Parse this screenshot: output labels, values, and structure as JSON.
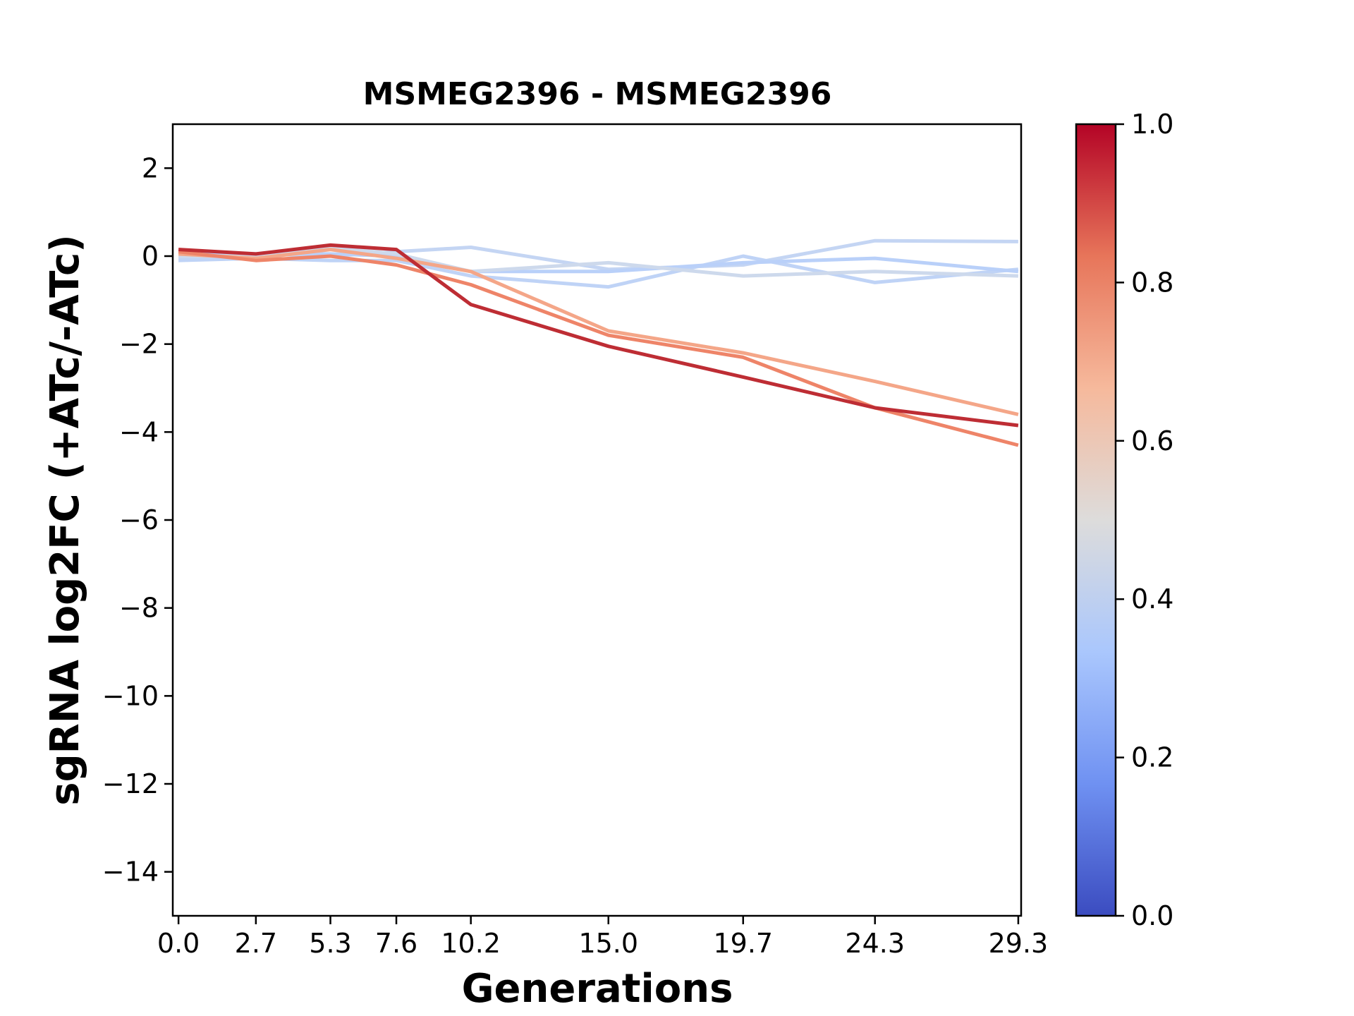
{
  "chart_data": {
    "type": "line",
    "title": "MSMEG2396 - MSMEG2396",
    "xlabel": "Generations",
    "ylabel": "sgRNA log2FC (+ATc/-ATc)",
    "x": [
      0.0,
      2.7,
      5.3,
      7.6,
      10.2,
      15.0,
      19.7,
      24.3,
      29.3
    ],
    "x_tick_labels": [
      "0.0",
      "2.7",
      "5.3",
      "7.6",
      "10.2",
      "15.0",
      "19.7",
      "24.3",
      "29.3"
    ],
    "xlim": [
      -0.2,
      29.4
    ],
    "ylim": [
      -15,
      3
    ],
    "y_ticks": [
      2,
      0,
      -2,
      -4,
      -6,
      -8,
      -10,
      -12,
      -14
    ],
    "y_tick_labels": [
      "2",
      "0",
      "−2",
      "−4",
      "−6",
      "−8",
      "−10",
      "−12",
      "−14"
    ],
    "grid": false,
    "legend": "none",
    "colorbar": {
      "colormap": "coolwarm",
      "range": [
        0.0,
        1.0
      ],
      "ticks": [
        0.0,
        0.2,
        0.4,
        0.6,
        0.8,
        1.0
      ],
      "tick_labels": [
        "0.0",
        "0.2",
        "0.4",
        "0.6",
        "0.8",
        "1.0"
      ],
      "stops": [
        "#3b4cc0",
        "#6f91f2",
        "#aac7fd",
        "#dddcdb",
        "#f6b99c",
        "#e7755a",
        "#b40426"
      ]
    },
    "series": [
      {
        "color_value": 0.4,
        "color": "#c4d5f3",
        "values": [
          -0.05,
          0.05,
          0.0,
          0.1,
          0.2,
          -0.3,
          -0.2,
          0.35,
          0.33
        ]
      },
      {
        "color_value": 0.38,
        "color": "#bfd3f6",
        "values": [
          -0.1,
          -0.05,
          -0.1,
          -0.1,
          -0.45,
          -0.7,
          0.0,
          -0.6,
          -0.3
        ]
      },
      {
        "color_value": 0.36,
        "color": "#b9d0f9",
        "values": [
          0.1,
          0.05,
          0.05,
          0.0,
          -0.35,
          -0.35,
          -0.15,
          -0.05,
          -0.35
        ]
      },
      {
        "color_value": 0.44,
        "color": "#cdd9ec",
        "values": [
          0.0,
          0.0,
          0.2,
          0.05,
          -0.35,
          -0.15,
          -0.45,
          -0.35,
          -0.45
        ]
      },
      {
        "color_value": 0.72,
        "color": "#f4a688",
        "values": [
          0.05,
          -0.05,
          0.15,
          -0.05,
          -0.35,
          -1.7,
          -2.2,
          -2.85,
          -3.6
        ]
      },
      {
        "color_value": 0.8,
        "color": "#ee8468",
        "values": [
          0.1,
          -0.1,
          0.0,
          -0.2,
          -0.65,
          -1.8,
          -2.3,
          -3.45,
          -4.3
        ]
      },
      {
        "color_value": 0.96,
        "color": "#be2d34",
        "values": [
          0.15,
          0.05,
          0.25,
          0.15,
          -1.1,
          -2.05,
          -2.75,
          -3.45,
          -3.85
        ]
      }
    ]
  }
}
